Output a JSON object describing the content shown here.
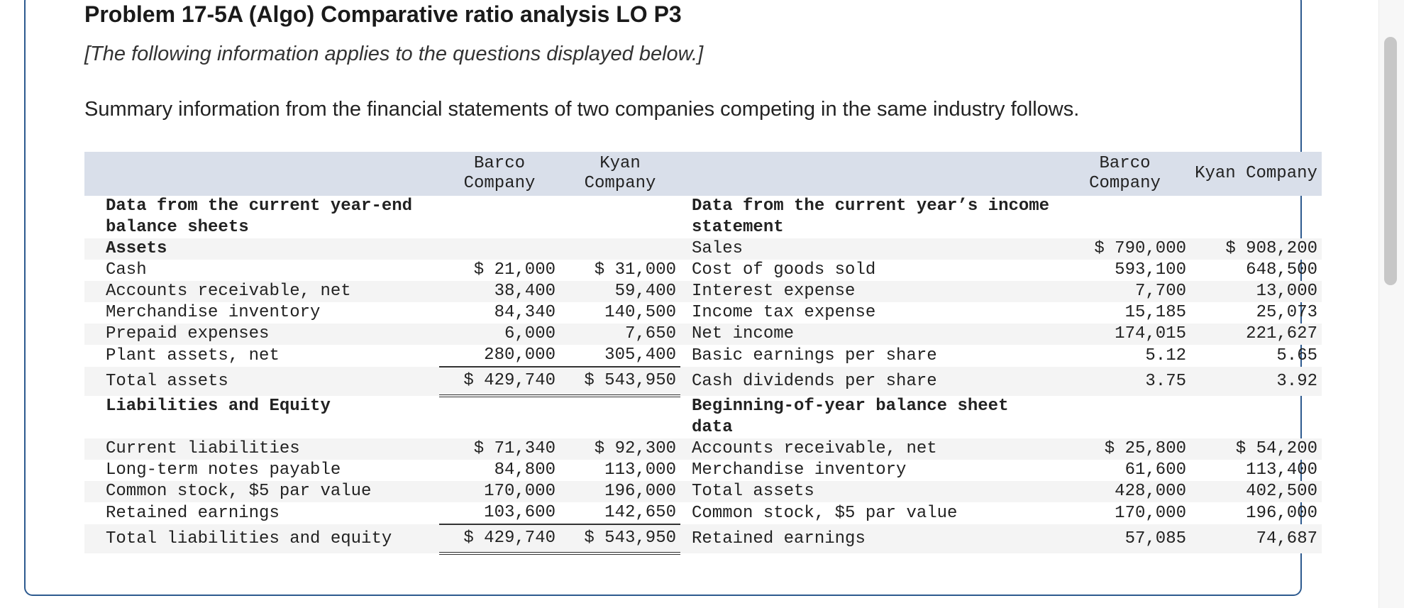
{
  "problem": {
    "title": "Problem 17-5A (Algo) Comparative ratio analysis LO P3",
    "note": "[The following information applies to the questions displayed below.]",
    "intro": "Summary information from the financial statements of two companies competing in the same industry follows."
  },
  "headers": {
    "left_barco": "Barco Company",
    "left_kyan": "Kyan Company",
    "right_barco": "Barco Company",
    "right_kyan": "Kyan Company"
  },
  "rows": [
    {
      "l": "Data from the current year-end balance sheets",
      "lb": true,
      "lv1": "",
      "lv2": "",
      "r": "Data from the current year’s income statement",
      "rb": true,
      "rv1": "",
      "rv2": ""
    },
    {
      "l": "Assets",
      "lb": true,
      "lv1": "",
      "lv2": "",
      "r": "Sales",
      "rv1": "$ 790,000",
      "rv2": "$ 908,200"
    },
    {
      "l": "Cash",
      "lv1": "$ 21,000",
      "lv2": "$ 31,000",
      "r": "Cost of goods sold",
      "rv1": "593,100",
      "rv2": "648,500"
    },
    {
      "l": "Accounts receivable, net",
      "lv1": "38,400",
      "lv2": "59,400",
      "r": "Interest expense",
      "rv1": "7,700",
      "rv2": "13,000"
    },
    {
      "l": "Merchandise inventory",
      "lv1": "84,340",
      "lv2": "140,500",
      "r": "Income tax expense",
      "rv1": "15,185",
      "rv2": "25,073"
    },
    {
      "l": "Prepaid expenses",
      "lv1": "6,000",
      "lv2": "7,650",
      "r": "Net income",
      "rv1": "174,015",
      "rv2": "221,627"
    },
    {
      "l": "Plant assets, net",
      "lv1": "280,000",
      "lv2": "305,400",
      "lul": "ul",
      "r": "Basic earnings per share",
      "rv1": "5.12",
      "rv2": "5.65"
    },
    {
      "l": "Total assets",
      "lv1": "$ 429,740",
      "lv2": "$ 543,950",
      "lul": "dul",
      "r": "Cash dividends per share",
      "rv1": "3.75",
      "rv2": "3.92",
      "tot": true
    },
    {
      "l": "Liabilities and Equity",
      "lb": true,
      "lv1": "",
      "lv2": "",
      "r": "Beginning-of-year balance sheet data",
      "rb": true,
      "rv1": "",
      "rv2": "",
      "gap": true
    },
    {
      "l": "Current liabilities",
      "lv1": "$ 71,340",
      "lv2": "$ 92,300",
      "r": "Accounts receivable, net",
      "rv1": "$ 25,800",
      "rv2": "$ 54,200"
    },
    {
      "l": "Long-term notes payable",
      "lv1": "84,800",
      "lv2": "113,000",
      "r": "Merchandise inventory",
      "rv1": "61,600",
      "rv2": "113,400"
    },
    {
      "l": "Common stock, $5 par value",
      "lv1": "170,000",
      "lv2": "196,000",
      "r": "Total assets",
      "rv1": "428,000",
      "rv2": "402,500"
    },
    {
      "l": "Retained earnings",
      "lv1": "103,600",
      "lv2": "142,650",
      "lul": "ul",
      "r": "Common stock, $5 par value",
      "rv1": "170,000",
      "rv2": "196,000"
    },
    {
      "l": "Total liabilities and equity",
      "lv1": "$ 429,740",
      "lv2": "$ 543,950",
      "lul": "dul",
      "r": "Retained earnings",
      "rv1": "57,085",
      "rv2": "74,687",
      "tot": true
    }
  ]
}
